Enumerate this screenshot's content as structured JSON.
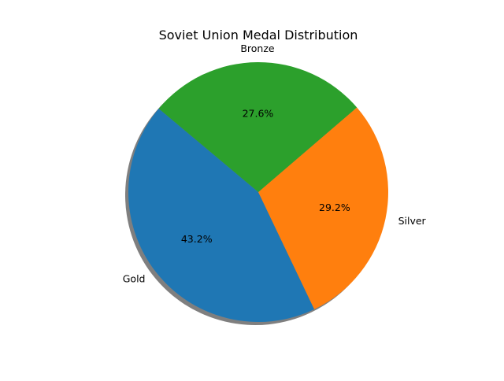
{
  "chart_data": {
    "type": "pie",
    "title": "Soviet Union Medal Distribution",
    "categories": [
      "Gold",
      "Silver",
      "Bronze"
    ],
    "values": [
      43.2,
      29.2,
      27.6
    ],
    "value_labels": [
      "43.2%",
      "29.2%",
      "27.6%"
    ],
    "colors": [
      "#1f77b4",
      "#ff7f0e",
      "#2ca02c"
    ],
    "start_angle_deg": 140,
    "shadow": true,
    "legend": "none"
  }
}
